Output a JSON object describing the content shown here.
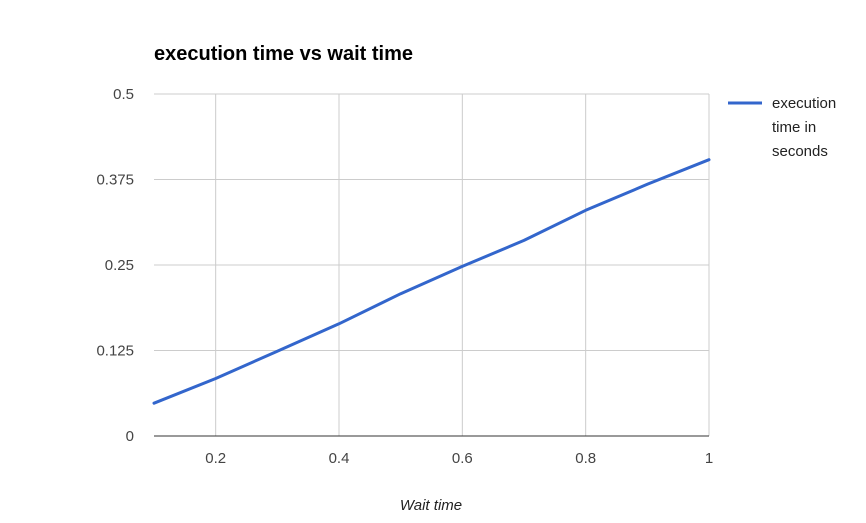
{
  "chart_data": {
    "type": "line",
    "title": "execution time vs wait time",
    "xlabel": "Wait time",
    "ylabel": "",
    "xlim": [
      0.1,
      1.0
    ],
    "ylim": [
      0,
      0.5
    ],
    "x_ticks": [
      "0.2",
      "0.4",
      "0.6",
      "0.8",
      "1"
    ],
    "y_ticks": [
      "0",
      "0.125",
      "0.25",
      "0.375",
      "0.5"
    ],
    "grid": true,
    "legend_position": "right",
    "series": [
      {
        "name": "execution time in seconds",
        "legend_lines": [
          "execution",
          "time in",
          "seconds"
        ],
        "color": "#3366cc",
        "x": [
          0.1,
          0.2,
          0.3,
          0.4,
          0.5,
          0.6,
          0.7,
          0.8,
          0.9,
          1.0
        ],
        "y": [
          0.048,
          0.084,
          0.124,
          0.164,
          0.208,
          0.248,
          0.286,
          0.33,
          0.368,
          0.404
        ]
      }
    ]
  }
}
